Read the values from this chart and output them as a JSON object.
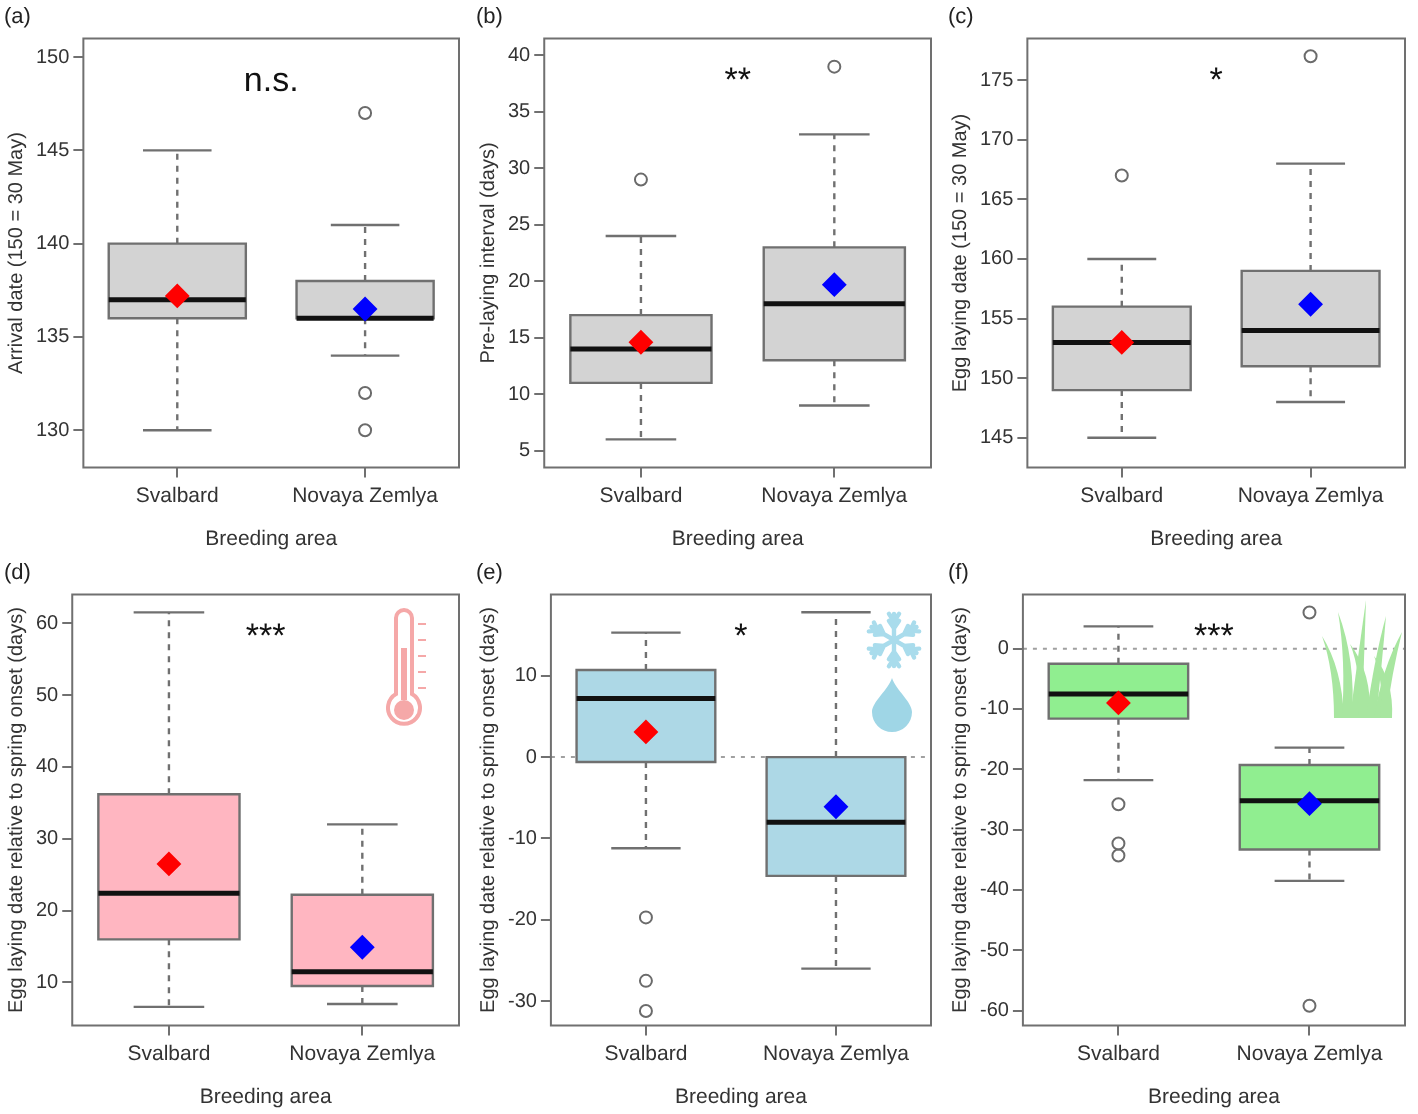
{
  "chart_data": [
    {
      "type": "box",
      "title": "(a)",
      "xlabel": "Breeding area",
      "ylabel": "Arrival date (150 = 30 May)",
      "categories": [
        "Svalbard",
        "Novaya Zemlya"
      ],
      "ylim": [
        128,
        151
      ],
      "yticks": [
        130,
        135,
        140,
        145,
        150
      ],
      "grid": false,
      "annotations": [
        "n.s."
      ],
      "series": [
        {
          "type": "box",
          "color": "#d3d3d3",
          "boxes": [
            {
              "low": 130,
              "q1": 136,
              "median": 137,
              "q3": 140,
              "high": 145
            },
            {
              "low": 134,
              "q1": 136,
              "median": 136,
              "q3": 138,
              "high": 141,
              "outliers": [
                147,
                132,
                130
              ]
            }
          ]
        },
        {
          "type": "scatter",
          "x": [
            "Svalbard",
            "Novaya Zemlya"
          ],
          "values": [
            137.2,
            136.5
          ],
          "colors": [
            "#ff0000",
            "#0000ff"
          ],
          "marker": "diamond"
        }
      ]
    },
    {
      "type": "box",
      "title": "(b)",
      "xlabel": "Breeding area",
      "ylabel": "Pre-laying interval (days)",
      "categories": [
        "Svalbard",
        "Novaya Zemlya"
      ],
      "ylim": [
        3.5,
        41.5
      ],
      "yticks": [
        5,
        10,
        15,
        20,
        25,
        30,
        35,
        40
      ],
      "grid": false,
      "annotations": [
        "**"
      ],
      "series": [
        {
          "type": "box",
          "color": "#d3d3d3",
          "boxes": [
            {
              "low": 6,
              "q1": 11,
              "median": 14,
              "q3": 17,
              "high": 24,
              "outliers": [
                29
              ]
            },
            {
              "low": 9,
              "q1": 13,
              "median": 18,
              "q3": 23,
              "high": 33,
              "outliers": [
                39
              ]
            }
          ]
        },
        {
          "type": "scatter",
          "x": [
            "Svalbard",
            "Novaya Zemlya"
          ],
          "values": [
            14.6,
            19.7
          ],
          "colors": [
            "#ff0000",
            "#0000ff"
          ],
          "marker": "diamond"
        }
      ]
    },
    {
      "type": "box",
      "title": "(c)",
      "xlabel": "Breeding area",
      "ylabel": "Egg laying date (150 = 30 May)",
      "categories": [
        "Svalbard",
        "Novaya Zemlya"
      ],
      "ylim": [
        142.5,
        178.5
      ],
      "yticks": [
        145,
        150,
        155,
        160,
        165,
        170,
        175
      ],
      "grid": false,
      "annotations": [
        "*"
      ],
      "series": [
        {
          "type": "box",
          "color": "#d3d3d3",
          "boxes": [
            {
              "low": 145,
              "q1": 149,
              "median": 153,
              "q3": 156,
              "high": 160,
              "outliers": [
                167
              ]
            },
            {
              "low": 148,
              "q1": 151,
              "median": 154,
              "q3": 159,
              "high": 168,
              "outliers": [
                177
              ]
            }
          ]
        },
        {
          "type": "scatter",
          "x": [
            "Svalbard",
            "Novaya Zemlya"
          ],
          "values": [
            153,
            156.2
          ],
          "colors": [
            "#ff0000",
            "#0000ff"
          ],
          "marker": "diamond"
        }
      ]
    },
    {
      "type": "box",
      "title": "(d)",
      "xlabel": "Breeding area",
      "ylabel": "Egg laying date relative to spring onset (days)",
      "categories": [
        "Svalbard",
        "Novaya Zemlya"
      ],
      "ylim": [
        4,
        64
      ],
      "yticks": [
        10,
        20,
        30,
        40,
        50,
        60
      ],
      "grid": false,
      "annotations": [
        "***"
      ],
      "series": [
        {
          "type": "box",
          "color": "#ffb6c1",
          "boxes": [
            {
              "low": 6.6,
              "q1": 16,
              "median": 22.4,
              "q3": 36.2,
              "high": 61.5
            },
            {
              "low": 7,
              "q1": 9.5,
              "median": 11.5,
              "q3": 22.2,
              "high": 32
            }
          ]
        },
        {
          "type": "scatter",
          "x": [
            "Svalbard",
            "Novaya Zemlya"
          ],
          "values": [
            26.5,
            14.9
          ],
          "colors": [
            "#ff0000",
            "#0000ff"
          ],
          "marker": "diamond"
        }
      ]
    },
    {
      "type": "box",
      "title": "(e)",
      "xlabel": "Breeding area",
      "ylabel": "Egg laying date relative to spring onset (days)",
      "categories": [
        "Svalbard",
        "Novaya Zemlya"
      ],
      "ylim": [
        -33,
        20
      ],
      "yticks": [
        -30,
        -20,
        -10,
        0,
        10
      ],
      "grid": false,
      "annotations": [
        "*"
      ],
      "ref_lines": [
        {
          "axis": "y",
          "value": 0,
          "color": "#a0a0a0",
          "line_style": "dotted"
        }
      ],
      "series": [
        {
          "type": "box",
          "color": "#add8e6",
          "boxes": [
            {
              "low": -11.2,
              "q1": -0.6,
              "median": 7.2,
              "q3": 10.7,
              "high": 15.3,
              "outliers": [
                -19.7,
                -27.5,
                -31.2
              ]
            },
            {
              "low": -26,
              "q1": -14.6,
              "median": -8,
              "q3": 0,
              "high": 17.8
            }
          ]
        },
        {
          "type": "scatter",
          "x": [
            "Svalbard",
            "Novaya Zemlya"
          ],
          "values": [
            3.1,
            -6.1
          ],
          "colors": [
            "#ff0000",
            "#0000ff"
          ],
          "marker": "diamond"
        }
      ]
    },
    {
      "type": "box",
      "title": "(f)",
      "xlabel": "Breeding area",
      "ylabel": "Egg laying date relative to spring onset (days)",
      "categories": [
        "Svalbard",
        "Novaya Zemlya"
      ],
      "ylim": [
        -62.5,
        9
      ],
      "yticks": [
        -60,
        -50,
        -40,
        -30,
        -20,
        -10,
        0
      ],
      "grid": false,
      "annotations": [
        "***"
      ],
      "ref_lines": [
        {
          "axis": "y",
          "value": 0,
          "color": "#a0a0a0",
          "line_style": "dotted"
        }
      ],
      "series": [
        {
          "type": "box",
          "color": "#90ee90",
          "boxes": [
            {
              "low": -21.8,
              "q1": -11.6,
              "median": -7.5,
              "q3": -2.5,
              "high": 3.7,
              "outliers": [
                -25.8,
                -32.3,
                -34.3
              ]
            },
            {
              "low": -38.5,
              "q1": -33.3,
              "median": -25.2,
              "q3": -19.3,
              "high": -16.4,
              "outliers": [
                6,
                -59.2
              ]
            }
          ]
        },
        {
          "type": "scatter",
          "x": [
            "Svalbard",
            "Novaya Zemlya"
          ],
          "values": [
            -9,
            -25.7
          ],
          "colors": [
            "#ff0000",
            "#0000ff"
          ],
          "marker": "diamond"
        }
      ]
    }
  ]
}
